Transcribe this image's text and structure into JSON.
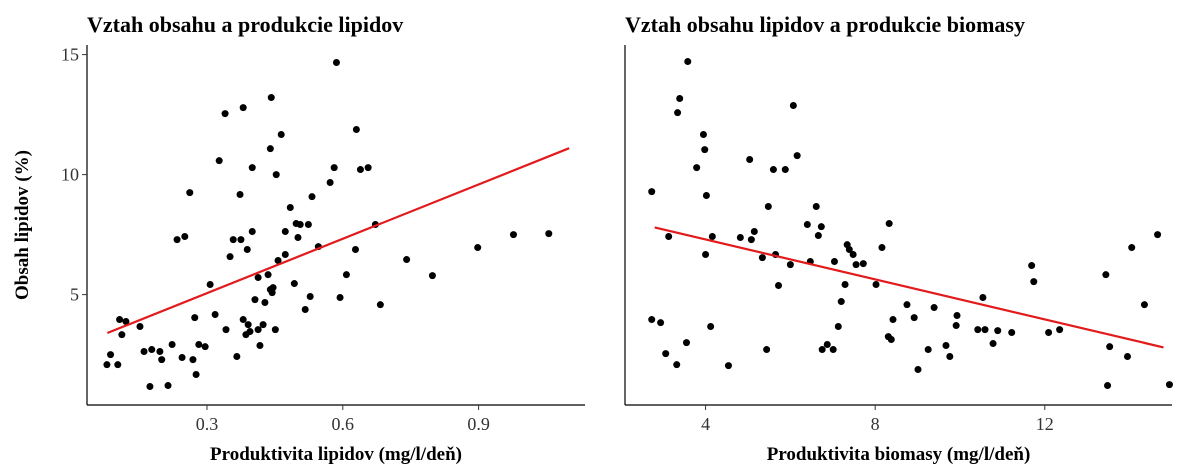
{
  "chart_data": [
    {
      "type": "scatter",
      "title": "Vztah obsahu a produkcie lipidov",
      "x_label": "Produktivita lipidov (mg/l/deň)",
      "y_label": "Obsah lipidov (%)",
      "xlim": [
        0.035,
        1.135
      ],
      "xticks": [
        0.3,
        0.6,
        0.9
      ],
      "ylim": [
        0.4,
        15.4
      ],
      "yticks": [
        5,
        10,
        15
      ],
      "color": "#000000",
      "x": [
        0.079,
        0.087,
        0.103,
        0.112,
        0.107,
        0.121,
        0.152,
        0.161,
        0.178,
        0.174,
        0.196,
        0.2,
        0.214,
        0.223,
        0.234,
        0.251,
        0.245,
        0.262,
        0.273,
        0.269,
        0.282,
        0.276,
        0.296,
        0.307,
        0.318,
        0.327,
        0.34,
        0.342,
        0.351,
        0.358,
        0.366,
        0.373,
        0.375,
        0.38,
        0.38,
        0.386,
        0.389,
        0.395,
        0.391,
        0.4,
        0.4,
        0.406,
        0.413,
        0.413,
        0.417,
        0.424,
        0.428,
        0.435,
        0.44,
        0.44,
        0.442,
        0.444,
        0.446,
        0.451,
        0.453,
        0.457,
        0.464,
        0.473,
        0.473,
        0.484,
        0.493,
        0.497,
        0.501,
        0.506,
        0.517,
        0.524,
        0.528,
        0.532,
        0.546,
        0.572,
        0.581,
        0.586,
        0.594,
        0.608,
        0.63,
        0.639,
        0.628,
        0.656,
        0.672,
        0.683,
        0.741,
        0.798,
        0.898,
        0.977,
        1.055
      ],
      "values": [
        2.08,
        2.5,
        2.08,
        3.33,
        3.96,
        3.88,
        3.67,
        2.63,
        2.71,
        1.17,
        2.63,
        2.29,
        1.21,
        2.92,
        7.29,
        7.42,
        2.38,
        9.25,
        4.04,
        2.29,
        2.92,
        1.67,
        2.83,
        5.42,
        4.17,
        10.58,
        12.54,
        3.54,
        6.58,
        7.29,
        2.42,
        9.17,
        7.29,
        12.79,
        3.96,
        3.33,
        6.88,
        3.46,
        3.75,
        10.29,
        7.63,
        4.79,
        3.54,
        5.71,
        2.88,
        3.75,
        4.67,
        5.83,
        11.08,
        5.21,
        13.21,
        5.08,
        5.29,
        3.54,
        10.0,
        6.42,
        11.67,
        6.67,
        7.63,
        8.63,
        5.46,
        7.96,
        7.38,
        7.92,
        4.38,
        7.92,
        4.92,
        9.08,
        7.0,
        9.67,
        10.29,
        14.67,
        4.88,
        5.83,
        11.88,
        10.21,
        6.88,
        10.29,
        7.92,
        4.58,
        6.46,
        5.79,
        6.96,
        7.5,
        7.54
      ],
      "trend": {
        "x": [
          0.08,
          1.1
        ],
        "values": [
          3.4,
          11.1
        ],
        "color": "#e31a1c"
      }
    },
    {
      "type": "scatter",
      "title": "Vztah obsahu lipidov a produkcie biomasy",
      "x_label": "Produktivita biomasy (mg/l/deň)",
      "xlim": [
        2.1,
        15
      ],
      "xticks": [
        4,
        8,
        12
      ],
      "ylim": [
        0.4,
        15.4
      ],
      "color": "#000000",
      "x": [
        2.73,
        2.73,
        2.94,
        3.06,
        3.13,
        3.32,
        3.34,
        3.39,
        3.55,
        3.58,
        3.79,
        3.98,
        3.95,
        4.02,
        4.0,
        4.12,
        4.16,
        4.54,
        4.82,
        5.04,
        5.08,
        5.15,
        5.34,
        5.44,
        5.48,
        5.6,
        5.65,
        5.72,
        5.88,
        6.0,
        6.07,
        6.16,
        6.4,
        6.47,
        6.61,
        6.66,
        6.73,
        6.75,
        6.87,
        7.01,
        7.04,
        7.13,
        7.2,
        7.29,
        7.34,
        7.39,
        7.48,
        7.55,
        7.72,
        8.02,
        8.16,
        8.31,
        8.33,
        8.38,
        8.42,
        8.75,
        8.92,
        9.01,
        9.25,
        9.39,
        9.67,
        9.76,
        9.91,
        9.93,
        10.42,
        10.54,
        10.59,
        10.78,
        10.89,
        11.22,
        11.74,
        11.69,
        12.09,
        12.35,
        13.44,
        13.48,
        13.53,
        13.95,
        14.05,
        14.35,
        14.66,
        14.94
      ],
      "values": [
        9.29,
        3.96,
        3.83,
        2.54,
        7.42,
        2.08,
        12.58,
        13.17,
        3.0,
        14.71,
        10.29,
        11.04,
        11.67,
        9.13,
        6.67,
        3.67,
        7.42,
        2.04,
        7.38,
        10.63,
        7.29,
        7.63,
        6.54,
        2.71,
        8.67,
        10.21,
        6.67,
        5.38,
        10.21,
        6.25,
        12.88,
        10.79,
        7.92,
        6.38,
        8.67,
        7.46,
        7.83,
        2.71,
        2.92,
        2.71,
        6.38,
        3.67,
        4.71,
        5.42,
        7.08,
        6.88,
        6.67,
        6.25,
        6.29,
        5.42,
        6.96,
        3.25,
        7.96,
        3.13,
        3.96,
        4.58,
        4.04,
        1.88,
        2.71,
        4.46,
        2.88,
        2.42,
        3.71,
        4.13,
        3.54,
        4.88,
        3.54,
        2.96,
        3.5,
        3.42,
        5.54,
        6.21,
        3.42,
        3.54,
        5.83,
        1.21,
        2.83,
        2.42,
        6.96,
        4.58,
        7.5,
        1.25
      ],
      "trend": {
        "x": [
          2.8,
          14.8
        ],
        "values": [
          7.8,
          2.8
        ],
        "color": "#e31a1c"
      }
    }
  ]
}
